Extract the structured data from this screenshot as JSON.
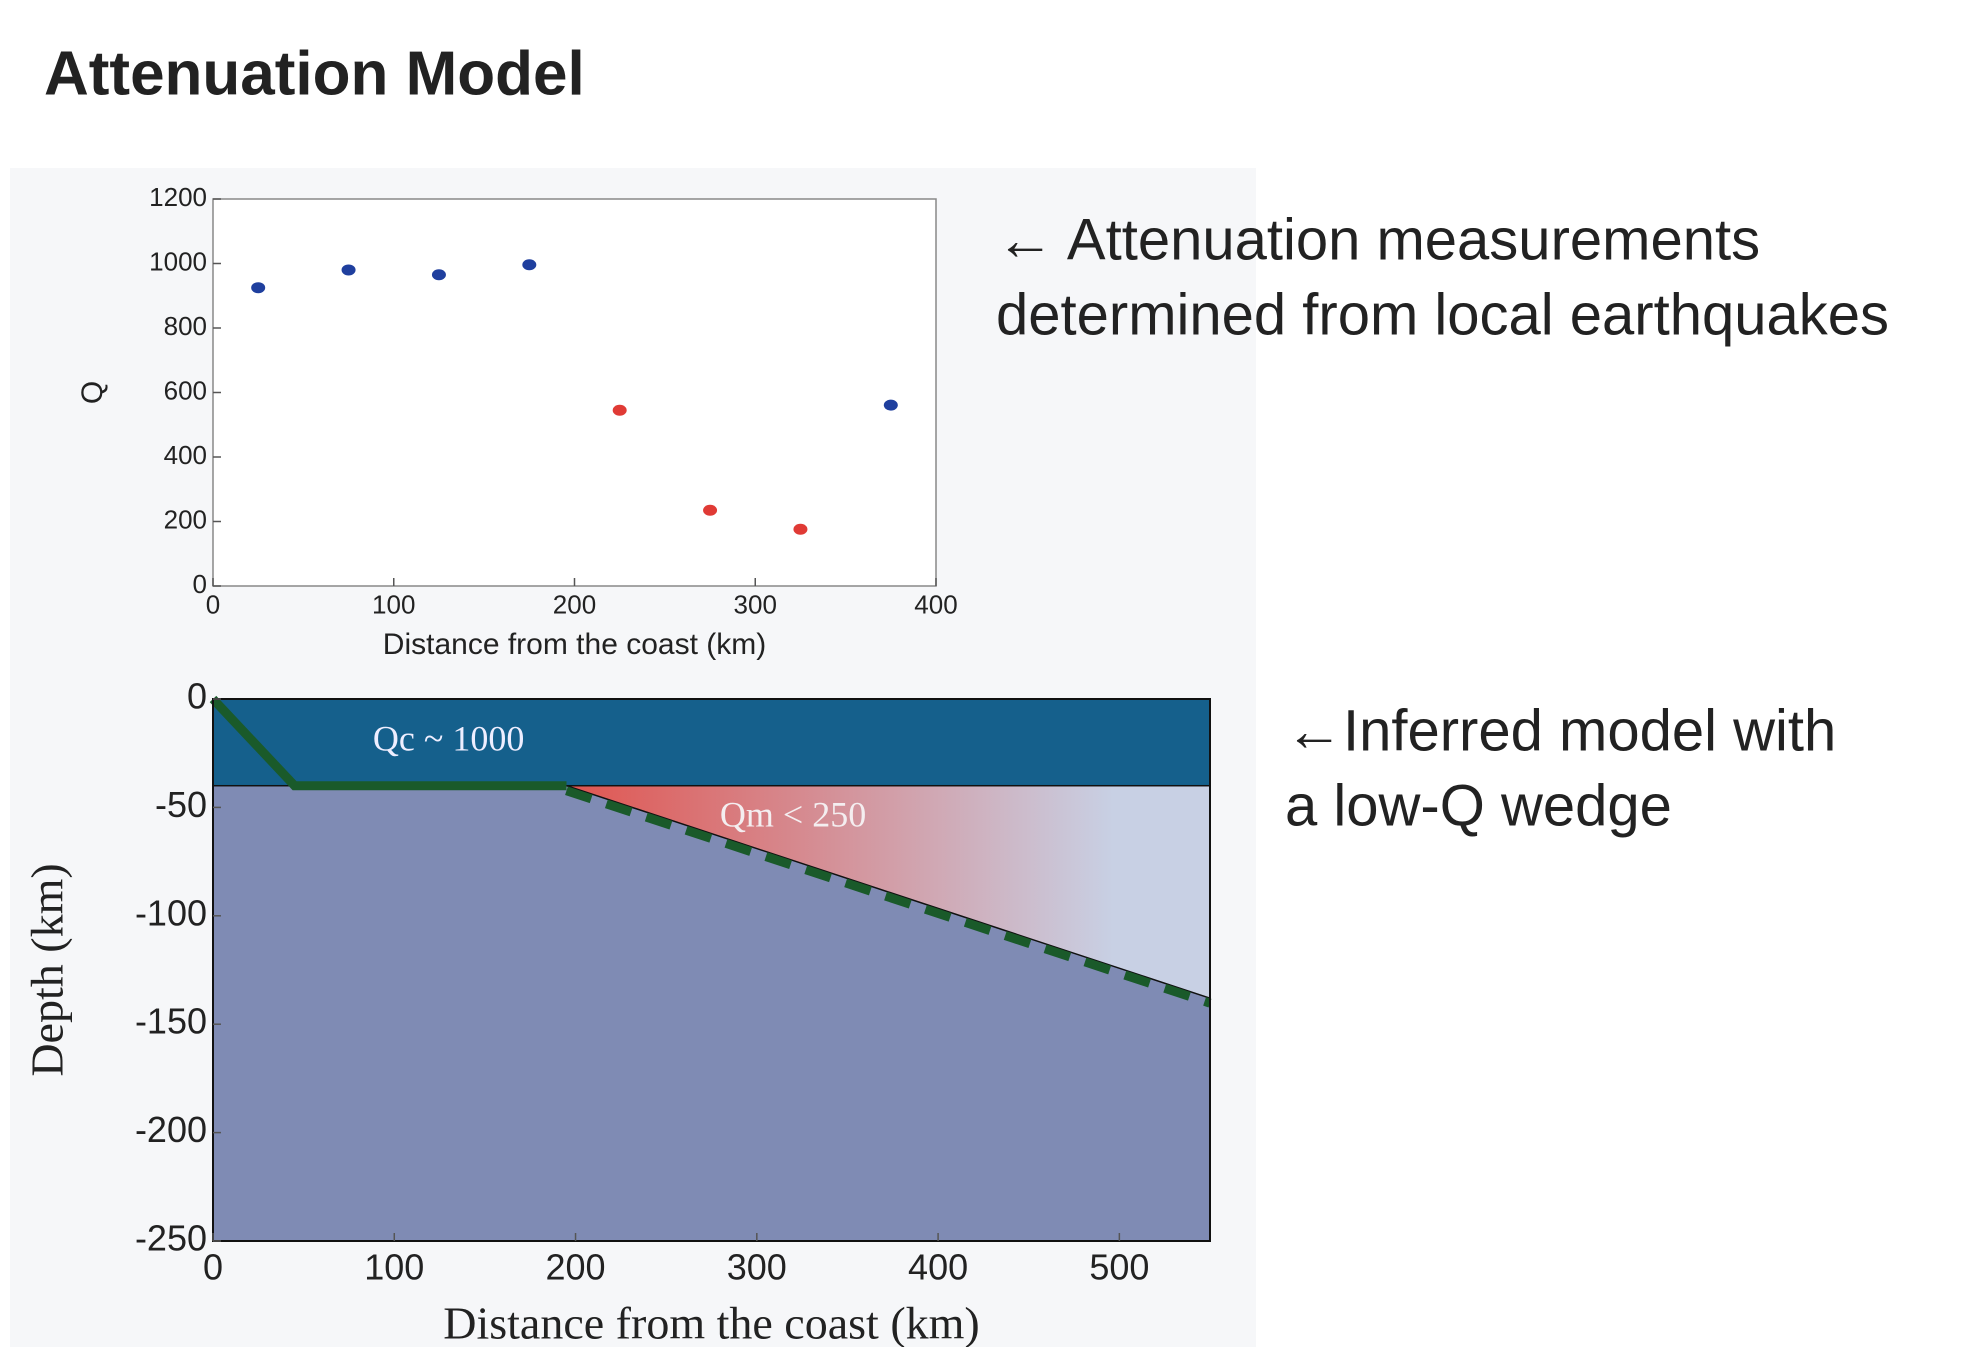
{
  "title": "Attenuation Model",
  "annotations": [
    {
      "lines": [
        "← Attenuation measurements",
        "determined from local earthquakes"
      ]
    },
    {
      "lines": [
        "←Inferred model with",
        "a low-Q wedge"
      ]
    }
  ],
  "chart_data": [
    {
      "type": "scatter",
      "xlabel": "Distance from the coast (km)",
      "ylabel": "Q",
      "xlim": [
        0,
        400
      ],
      "ylim": [
        0,
        1200
      ],
      "xticks": [
        0,
        100,
        200,
        300,
        400
      ],
      "yticks": [
        0,
        200,
        400,
        600,
        800,
        1000,
        1200
      ],
      "series": [
        {
          "color": "#1f3f9e",
          "x": [
            25,
            75,
            125,
            175,
            375
          ],
          "values": [
            925,
            980,
            965,
            996,
            561
          ]
        },
        {
          "color": "#e03a35",
          "x": [
            225,
            275,
            325
          ],
          "values": [
            545,
            235,
            176
          ]
        }
      ]
    },
    {
      "type": "model",
      "xlabel": "Distance from the coast (km)",
      "ylabel": "Depth (km)",
      "xlim": [
        0,
        550
      ],
      "ylim": [
        -250,
        0
      ],
      "xticks": [
        0,
        100,
        200,
        300,
        400,
        500
      ],
      "yticks": [
        -250,
        -200,
        -150,
        -100,
        -50,
        0
      ],
      "crust_base": -40,
      "crust_label": "Qc ~ 1000",
      "wedge_label": "Qm < 250",
      "slab_x": [
        0,
        45,
        195,
        550
      ],
      "slab_y": [
        0,
        -40,
        -40,
        -138
      ],
      "crust_color": "#15608c",
      "mantle_color": "#7f8bb4",
      "wedge_colors": [
        "#e05550",
        "#c8d0e4"
      ],
      "slab_color": "#1a5a2a"
    }
  ]
}
